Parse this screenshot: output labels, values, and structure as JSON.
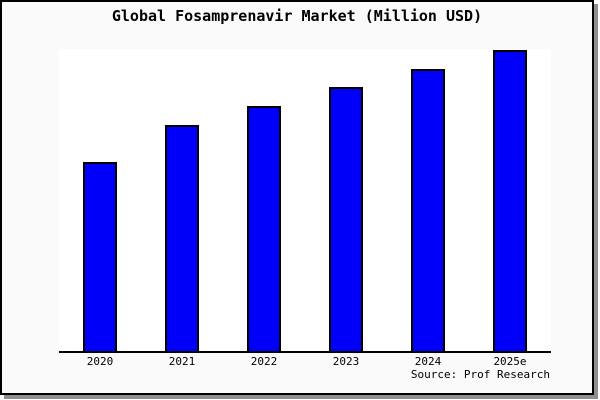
{
  "colors": {
    "bar_fill": "#0000fa",
    "bar_border": "#000000",
    "canvas_background": "#fafafa",
    "plot_background": "#ffffff",
    "axis_line": "#000000",
    "frame_border": "#000000",
    "frame_shadow": "#8f8f8f",
    "text": "#000000"
  },
  "chart_data": {
    "type": "bar",
    "title": "Global Fosamprenavir Market (Million USD)",
    "categories": [
      "2020",
      "2021",
      "2022",
      "2023",
      "2024",
      "2025e"
    ],
    "values": [
      62.8,
      75.1,
      81.4,
      87.7,
      93.7,
      100
    ],
    "values_note": "estimated relative bar heights, percent of tallest bar (no y-axis scale shown in image)",
    "xlabel": "",
    "ylabel": "",
    "y_axis_ticks": "none",
    "gridlines": false,
    "legend": "none",
    "bar_color": "#0000fa",
    "source": "Source: Prof Research"
  }
}
